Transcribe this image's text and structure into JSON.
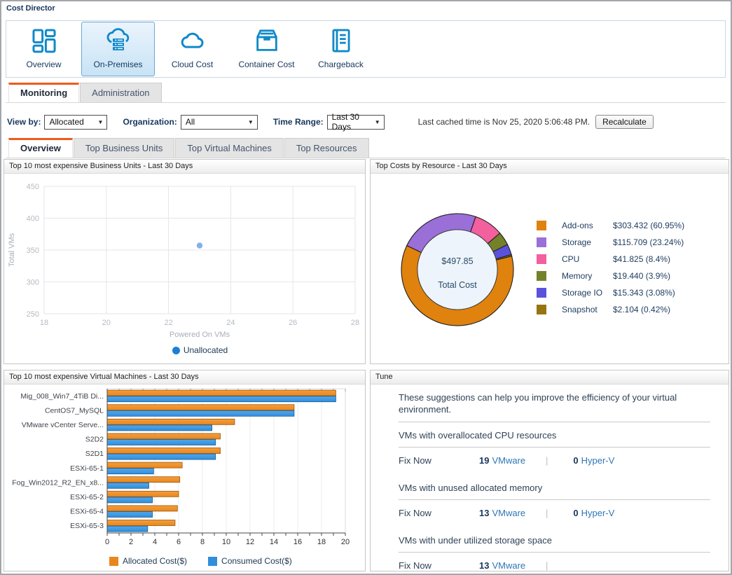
{
  "window": {
    "title": "Cost Director"
  },
  "toolbar": {
    "buttons": [
      {
        "label": "Overview",
        "selected": false
      },
      {
        "label": "On-Premises",
        "selected": true
      },
      {
        "label": "Cloud Cost",
        "selected": false
      },
      {
        "label": "Container Cost",
        "selected": false
      },
      {
        "label": "Chargeback",
        "selected": false
      }
    ]
  },
  "main_tabs": [
    {
      "label": "Monitoring",
      "selected": true
    },
    {
      "label": "Administration",
      "selected": false
    }
  ],
  "filter_bar": {
    "view_by_label": "View by:",
    "view_by_value": "Allocated",
    "organization_label": "Organization:",
    "organization_value": "All",
    "time_range_label": "Time Range:",
    "time_range_value": "Last 30 Days",
    "cached_text": "Last cached time is Nov 25, 2020 5:06:48 PM.",
    "recalculate_label": "Recalculate"
  },
  "sub_tabs": [
    {
      "label": "Overview",
      "selected": true
    },
    {
      "label": "Top Business Units",
      "selected": false
    },
    {
      "label": "Top Virtual Machines",
      "selected": false
    },
    {
      "label": "Top Resources",
      "selected": false
    }
  ],
  "panels": {
    "business_units": {
      "title": "Top 10 most expensive Business Units - Last 30 Days"
    },
    "resources": {
      "title": "Top Costs by Resource - Last 30 Days"
    },
    "virtual_machines": {
      "title": "Top 10 most expensive Virtual Machines - Last 30 Days"
    },
    "tune": {
      "title": "Tune",
      "intro": "These suggestions can help you improve the efficiency of your virtual environment.",
      "sections": [
        {
          "title": "VMs with overallocated CPU resources",
          "action": "Fix Now",
          "vmware_count": "19",
          "vmware_label": "VMware",
          "hyperv_count": "0",
          "hyperv_label": "Hyper-V"
        },
        {
          "title": "VMs with unused allocated memory",
          "action": "Fix Now",
          "vmware_count": "13",
          "vmware_label": "VMware",
          "hyperv_count": "0",
          "hyperv_label": "Hyper-V"
        },
        {
          "title": "VMs with under utilized storage space",
          "action": "Fix Now",
          "vmware_count": "13",
          "vmware_label": "VMware"
        }
      ]
    }
  },
  "chart_data": [
    {
      "type": "scatter",
      "title": "Top 10 most expensive Business Units - Last 30 Days",
      "xlabel": "Powered On VMs",
      "ylabel": "Total VMs",
      "xlim": [
        18,
        28
      ],
      "ylim": [
        250,
        450
      ],
      "xticks": [
        18,
        20,
        22,
        24,
        26,
        28
      ],
      "yticks": [
        250,
        300,
        350,
        400,
        450
      ],
      "grid": true,
      "legend_position": "bottom",
      "series": [
        {
          "name": "Unallocated",
          "point_color": "#7fb2ef",
          "legend_color": "#1b7fd9",
          "points": [
            [
              23,
              357
            ]
          ]
        }
      ]
    },
    {
      "type": "pie",
      "title": "Top Costs by Resource - Last 30 Days",
      "donut": true,
      "start_angle_deg": 76,
      "center_value": "$497.85",
      "center_label": "Total Cost",
      "slices": [
        {
          "label": "Add-ons",
          "value": 303.432,
          "percent": 60.95,
          "display": "$303.432 (60.95%)",
          "color": "#e0820e"
        },
        {
          "label": "Storage",
          "value": 115.709,
          "percent": 23.24,
          "display": "$115.709 (23.24%)",
          "color": "#9a6fd8"
        },
        {
          "label": "CPU",
          "value": 41.825,
          "percent": 8.4,
          "display": "$41.825 (8.4%)",
          "color": "#f2609e"
        },
        {
          "label": "Memory",
          "value": 19.44,
          "percent": 3.9,
          "display": "$19.440 (3.9%)",
          "color": "#75802b"
        },
        {
          "label": "Storage IO",
          "value": 15.343,
          "percent": 3.08,
          "display": "$15.343 (3.08%)",
          "color": "#5a52dd"
        },
        {
          "label": "Snapshot",
          "value": 2.104,
          "percent": 0.42,
          "display": "$2.104 (0.42%)",
          "color": "#97740f"
        }
      ]
    },
    {
      "type": "bar",
      "orientation": "horizontal",
      "title": "Top 10 most expensive Virtual Machines - Last 30 Days",
      "xlim": [
        0,
        20
      ],
      "xticks": [
        0,
        2,
        4,
        6,
        8,
        10,
        12,
        14,
        16,
        18,
        20
      ],
      "categories": [
        "Mig_008_Win7_4TiB Di...",
        "CentOS7_MySQL",
        "VMware vCenter Serve...",
        "S2D2",
        "S2D1",
        "ESXi-65-1",
        "Fog_Win2012_R2_EN_x8...",
        "ESXi-65-2",
        "ESXi-65-4",
        "ESXi-65-3"
      ],
      "series": [
        {
          "name": "Allocated Cost($)",
          "color": "#e8871d",
          "color_light": "#f59d3d",
          "border": "#995908",
          "values": [
            19.2,
            15.7,
            10.7,
            9.5,
            9.5,
            6.3,
            6.1,
            6.0,
            5.9,
            5.7
          ]
        },
        {
          "name": "Consumed Cost($)",
          "color": "#2f8fdd",
          "color_light": "#55a6ea",
          "border": "#1c5d94",
          "values": [
            19.2,
            15.7,
            8.8,
            9.1,
            9.1,
            3.9,
            3.5,
            3.8,
            3.8,
            3.4
          ]
        }
      ]
    }
  ]
}
